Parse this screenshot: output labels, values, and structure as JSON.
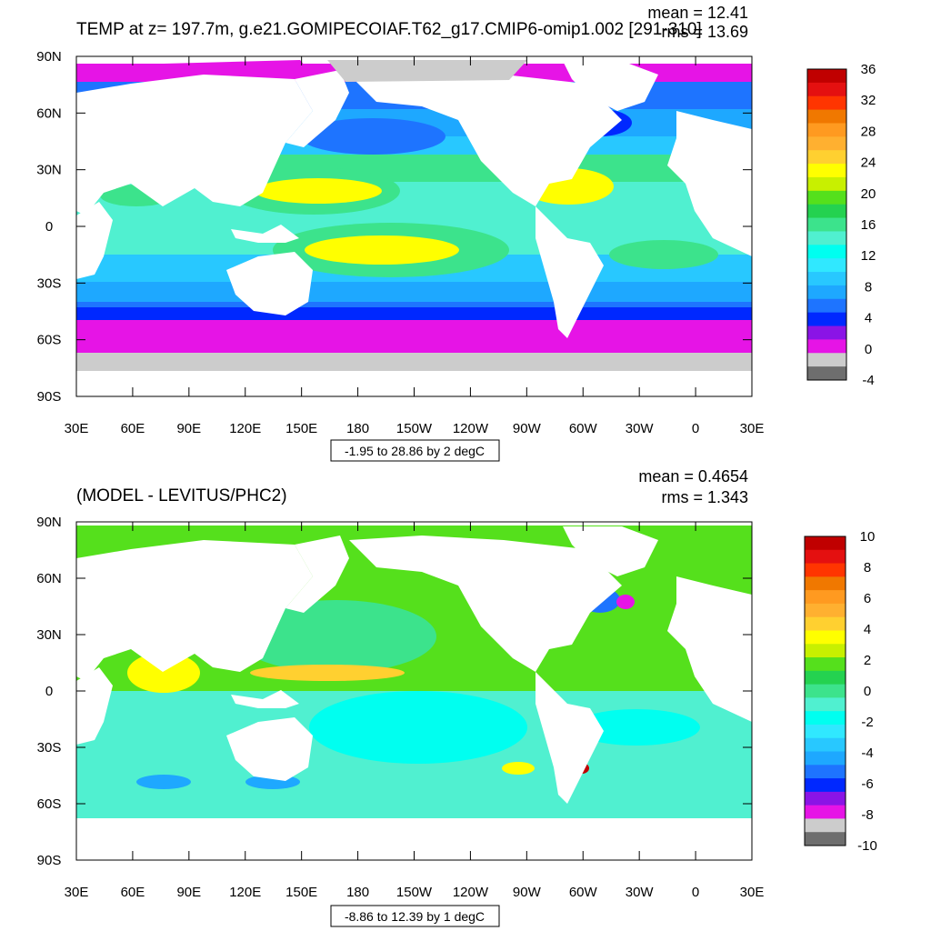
{
  "colors": {
    "land": "#ffffff",
    "ice": "#cccccc",
    "frame": "#000000"
  },
  "chart_data": [
    {
      "type": "heatmap",
      "title": "TEMP at z= 197.7m, g.e21.GOMIPECOIAF.T62_g17.CMIP6-omip1.002 [291-310]",
      "stats": {
        "mean_label": "mean = 12.41",
        "rms_label": "rms = 13.69",
        "mean": 12.41,
        "rms": 13.69
      },
      "x_ticks": [
        "30E",
        "60E",
        "90E",
        "120E",
        "150E",
        "180",
        "150W",
        "120W",
        "90W",
        "60W",
        "30W",
        "0",
        "30E"
      ],
      "y_ticks": [
        "90N",
        "60N",
        "30N",
        "0",
        "30S",
        "60S",
        "90S"
      ],
      "xlim": [
        30,
        390
      ],
      "ylim": [
        -90,
        90
      ],
      "range_label": "-1.95 to 28.86 by 2 degC",
      "data_min": -1.95,
      "data_max": 28.86,
      "units": "degC",
      "colorbar": {
        "labels": [
          "36",
          "32",
          "28",
          "24",
          "20",
          "16",
          "12",
          "8",
          "4",
          "0",
          "-4"
        ],
        "colors": [
          "#c00000",
          "#e41010",
          "#ff3500",
          "#f07800",
          "#ff9a20",
          "#ffb030",
          "#ffd030",
          "#ffff00",
          "#c8f000",
          "#55e01c",
          "#24d250",
          "#3ce38c",
          "#50f0d0",
          "#00fff0",
          "#30e8ff",
          "#28c8ff",
          "#1ea8ff",
          "#1e74ff",
          "#0028ff",
          "#8a14e6",
          "#e614e6",
          "#cccccc",
          "#6e6e6e"
        ]
      }
    },
    {
      "type": "heatmap",
      "title": "(MODEL - LEVITUS/PHC2)",
      "stats": {
        "mean_label": "mean = 0.4654",
        "rms_label": "rms = 1.343",
        "mean": 0.4654,
        "rms": 1.343
      },
      "x_ticks": [
        "30E",
        "60E",
        "90E",
        "120E",
        "150E",
        "180",
        "150W",
        "120W",
        "90W",
        "60W",
        "30W",
        "0",
        "30E"
      ],
      "y_ticks": [
        "90N",
        "60N",
        "30N",
        "0",
        "30S",
        "60S",
        "90S"
      ],
      "xlim": [
        30,
        390
      ],
      "ylim": [
        -90,
        90
      ],
      "range_label": "-8.86 to 12.39 by 1 degC",
      "data_min": -8.86,
      "data_max": 12.39,
      "units": "degC",
      "colorbar": {
        "labels": [
          "10",
          "8",
          "6",
          "4",
          "2",
          "0",
          "-2",
          "-4",
          "-6",
          "-8",
          "-10"
        ],
        "colors": [
          "#c00000",
          "#e41010",
          "#ff3500",
          "#f07800",
          "#ff9a20",
          "#ffb030",
          "#ffd030",
          "#ffff00",
          "#c8f000",
          "#55e01c",
          "#24d250",
          "#3ce38c",
          "#50f0d0",
          "#00fff0",
          "#30e8ff",
          "#28c8ff",
          "#1ea8ff",
          "#1e74ff",
          "#0028ff",
          "#8a14e6",
          "#e614e6",
          "#cccccc",
          "#6e6e6e"
        ]
      }
    }
  ]
}
